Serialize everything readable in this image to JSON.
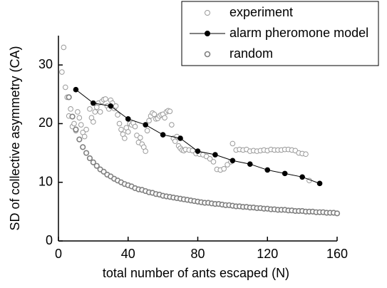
{
  "chart_data": {
    "type": "scatter",
    "xlabel": "total number of ants escaped (N)",
    "ylabel": "SD of collective asymmetry (CA)",
    "xlim": [
      0,
      160
    ],
    "xticks": [
      0,
      40,
      80,
      120,
      160
    ],
    "ylim": [
      0,
      35
    ],
    "yticks": [
      0,
      10,
      20,
      30
    ],
    "legend": "top-right",
    "series": [
      {
        "name": "experiment",
        "color": "#9a9a9a",
        "fill": "#ffffff",
        "line": false,
        "x": [
          2,
          3,
          4,
          5,
          6,
          7,
          8,
          9,
          10,
          11,
          12,
          13,
          14,
          15,
          16,
          18,
          19,
          20,
          21,
          22,
          23,
          24,
          25,
          26,
          27,
          28,
          29,
          30,
          31,
          32,
          33,
          34,
          35,
          36,
          37,
          38,
          39,
          40,
          41,
          42,
          43,
          44,
          45,
          46,
          47,
          48,
          49,
          50,
          51,
          52,
          53,
          54,
          55,
          56,
          57,
          58,
          59,
          60,
          61,
          62,
          63,
          64,
          65,
          66,
          67,
          68,
          69,
          70,
          71,
          72,
          73,
          75,
          77,
          79,
          81,
          83,
          85,
          87,
          89,
          91,
          93,
          95,
          97,
          99,
          100,
          102,
          104,
          106,
          108,
          110,
          112,
          114,
          116,
          118,
          120,
          122,
          124,
          126,
          128,
          130,
          132,
          134,
          136,
          138,
          140,
          142,
          144
        ],
        "values": [
          28.8,
          33.0,
          26.2,
          24.5,
          21.3,
          22.5,
          19.5,
          20.0,
          18.8,
          22.0,
          21.0,
          19.8,
          18.5,
          17.8,
          19.0,
          22.5,
          21.0,
          20.3,
          22.0,
          22.8,
          23.5,
          22.0,
          23.8,
          24.1,
          24.2,
          23.0,
          22.5,
          24.0,
          23.5,
          22.6,
          23.0,
          21.5,
          20.0,
          19.0,
          18.2,
          17.5,
          19.3,
          18.6,
          20.0,
          19.8,
          20.1,
          19.5,
          18.0,
          16.8,
          17.6,
          16.5,
          16.0,
          15.3,
          18.8,
          20.5,
          21.3,
          21.8,
          21.6,
          20.8,
          20.9,
          21.3,
          21.5,
          21.6,
          21.0,
          22.0,
          22.2,
          22.1,
          19.8,
          17.5,
          17.0,
          17.8,
          16.2,
          15.8,
          15.5,
          15.4,
          15.6,
          15.5,
          15.4,
          14.9,
          14.8,
          14.7,
          14.4,
          14.0,
          13.5,
          12.2,
          12.1,
          12.3,
          13.0,
          13.5,
          16.6,
          15.5,
          15.6,
          15.5,
          15.6,
          15.3,
          15.4,
          15.3,
          15.4,
          15.5,
          15.4,
          15.6,
          15.5,
          15.5,
          15.5,
          15.6,
          15.6,
          15.5,
          15.4,
          15.0,
          14.9,
          14.8,
          10.3
        ]
      },
      {
        "name": "alarm pheromone model",
        "color": "#000000",
        "fill": "#000000",
        "line": true,
        "x": [
          10,
          20,
          30,
          40,
          50,
          60,
          70,
          80,
          90,
          100,
          110,
          120,
          130,
          140,
          150
        ],
        "values": [
          25.8,
          23.5,
          23.0,
          20.8,
          19.8,
          18.1,
          17.5,
          15.3,
          14.7,
          13.7,
          13.1,
          12.1,
          11.5,
          10.9,
          9.8
        ]
      },
      {
        "name": "random",
        "color": "#808080",
        "fill": "#ffffff",
        "line": false,
        "x": [
          6,
          8,
          10,
          12,
          14,
          16,
          18,
          20,
          22,
          24,
          26,
          28,
          30,
          32,
          34,
          36,
          38,
          40,
          42,
          44,
          46,
          48,
          50,
          52,
          54,
          56,
          58,
          60,
          62,
          64,
          66,
          68,
          70,
          72,
          74,
          76,
          78,
          80,
          82,
          84,
          86,
          88,
          90,
          92,
          94,
          96,
          98,
          100,
          102,
          104,
          106,
          108,
          110,
          112,
          114,
          116,
          118,
          120,
          122,
          124,
          126,
          128,
          130,
          132,
          134,
          136,
          138,
          140,
          142,
          144,
          146,
          148,
          150,
          152,
          154,
          156,
          158,
          160
        ],
        "values": [
          24.5,
          21.2,
          19.0,
          17.3,
          16.0,
          15.0,
          14.1,
          13.4,
          12.8,
          12.2,
          11.8,
          11.3,
          11.0,
          10.6,
          10.3,
          10.0,
          9.7,
          9.5,
          9.3,
          9.0,
          8.8,
          8.7,
          8.5,
          8.3,
          8.2,
          8.0,
          7.9,
          7.7,
          7.6,
          7.5,
          7.4,
          7.3,
          7.2,
          7.1,
          7.0,
          6.9,
          6.8,
          6.7,
          6.6,
          6.5,
          6.5,
          6.4,
          6.3,
          6.3,
          6.2,
          6.1,
          6.1,
          6.0,
          5.9,
          5.9,
          5.8,
          5.8,
          5.7,
          5.7,
          5.6,
          5.6,
          5.5,
          5.5,
          5.4,
          5.4,
          5.3,
          5.3,
          5.3,
          5.2,
          5.2,
          5.1,
          5.1,
          5.1,
          5.0,
          5.0,
          5.0,
          4.9,
          4.9,
          4.9,
          4.8,
          4.8,
          4.8,
          4.7
        ]
      }
    ]
  }
}
